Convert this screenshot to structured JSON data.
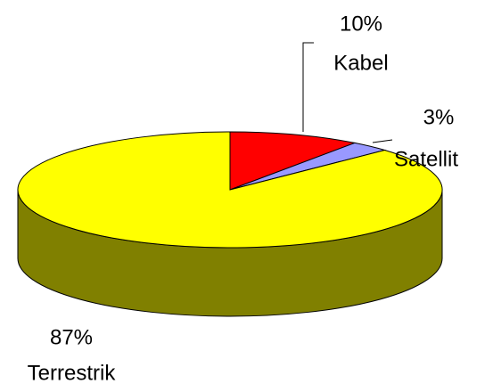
{
  "chart_data": {
    "type": "pie",
    "categories": [
      "Kabel",
      "Satellit",
      "Terrestrik"
    ],
    "values": [
      10,
      3,
      87
    ],
    "value_labels": [
      "10%",
      "3%",
      "87%"
    ],
    "colors": [
      "#ff0000",
      "#9999ff",
      "#ffff00"
    ]
  }
}
